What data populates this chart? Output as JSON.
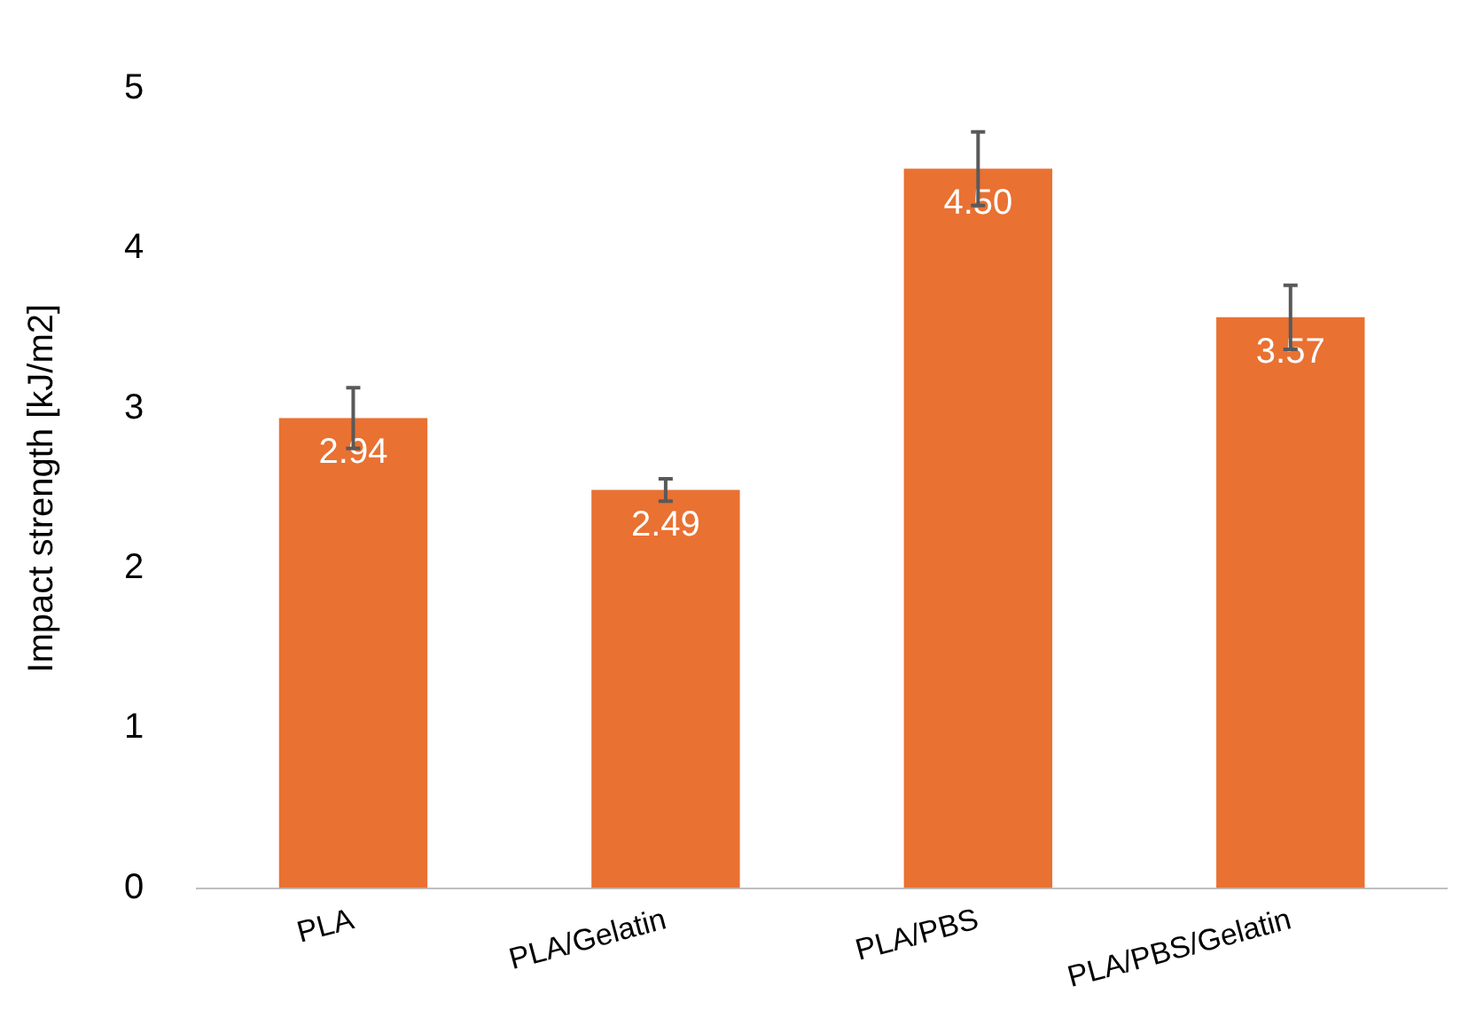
{
  "chart_data": {
    "type": "bar",
    "ylabel": "Impact strength [kJ/m2]",
    "categories": [
      "PLA",
      "PLA/Gelatin",
      "PLA/PBS",
      "PLA/PBS/Gelatin"
    ],
    "values": [
      2.94,
      2.49,
      4.5,
      3.57
    ],
    "errors": [
      0.19,
      0.07,
      0.23,
      0.2
    ],
    "value_labels": [
      "2.94",
      "2.49",
      "4.50",
      "3.57"
    ],
    "color": "#e97132",
    "ylim": [
      0,
      5
    ],
    "yticks": [
      0,
      1,
      2,
      3,
      4,
      5
    ],
    "grid": false,
    "legend": false
  }
}
